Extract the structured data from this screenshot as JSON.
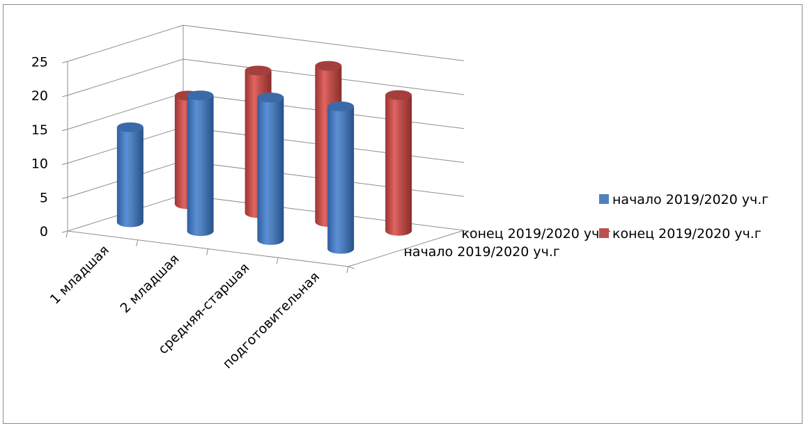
{
  "chart_data": {
    "type": "bar",
    "subtype": "3d-cylinder",
    "title": "",
    "categories": [
      "1 младшая",
      "2 младшая",
      "средняя-старшая",
      "подготовительная"
    ],
    "series": [
      {
        "name": "начало 2019/2020 уч.г",
        "color": "#4f81bd",
        "values": [
          14,
          20,
          21,
          21
        ]
      },
      {
        "name": "конец 2019/2020 уч.г",
        "color": "#c0504d",
        "values": [
          16,
          21,
          23,
          20
        ]
      }
    ],
    "y_ticks": [
      "0",
      "5",
      "10",
      "15",
      "20",
      "25"
    ],
    "ylim": [
      0,
      25
    ],
    "grid": true,
    "legend_position": "right"
  }
}
